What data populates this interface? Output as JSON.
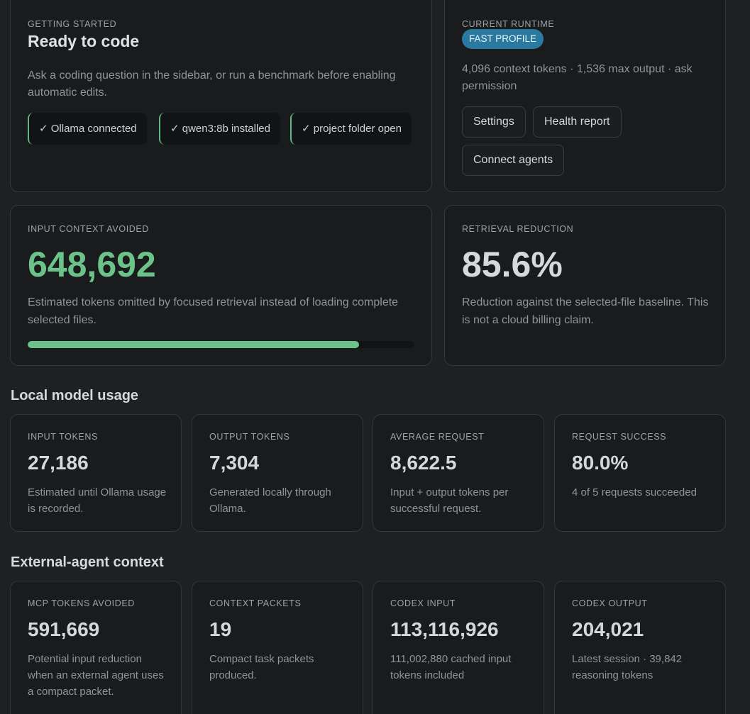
{
  "getting_started": {
    "eyebrow": "Getting started",
    "title": "Ready to code",
    "description": "Ask a coding question in the sidebar, or run a benchmark before enabling automatic edits.",
    "checks": [
      "✓ Ollama connected",
      "✓ qwen3:8b installed",
      "✓ project folder open"
    ],
    "accent_color": "#5fb882"
  },
  "runtime": {
    "eyebrow": "Current runtime",
    "profile_badge": "Fast profile",
    "description": "4,096 context tokens · 1,536 max output · ask permission",
    "buttons": {
      "settings": "Settings",
      "health_report": "Health report",
      "connect_agents": "Connect agents"
    },
    "badge_color": "#2a7aa0"
  },
  "input_context": {
    "eyebrow": "Input context avoided",
    "value": "648,692",
    "description": "Estimated tokens omitted by focused retrieval instead of loading complete selected files.",
    "progress_fraction": 0.856,
    "value_color": "#6cc389"
  },
  "retrieval": {
    "eyebrow": "Retrieval reduction",
    "value": "85.6%",
    "description": "Reduction against the selected-file baseline. This is not a cloud billing claim."
  },
  "local_usage": {
    "title": "Local model usage",
    "cards": [
      {
        "label": "Input tokens",
        "value": "27,186",
        "sub": "Estimated until Ollama usage is recorded."
      },
      {
        "label": "Output tokens",
        "value": "7,304",
        "sub": "Generated locally through Ollama."
      },
      {
        "label": "Average request",
        "value": "8,622.5",
        "sub": "Input + output tokens per successful request."
      },
      {
        "label": "Request success",
        "value": "80.0%",
        "sub": "4 of 5 requests succeeded"
      }
    ]
  },
  "external_agent": {
    "title": "External-agent context",
    "cards": [
      {
        "label": "MCP tokens avoided",
        "value": "591,669",
        "sub": "Potential input reduction when an external agent uses a compact packet."
      },
      {
        "label": "Context packets",
        "value": "19",
        "sub": "Compact task packets produced."
      },
      {
        "label": "Codex input",
        "value": "113,116,926",
        "sub": "111,002,880 cached input tokens included"
      },
      {
        "label": "Codex output",
        "value": "204,021",
        "sub": "Latest session · 39,842 reasoning tokens"
      }
    ]
  }
}
